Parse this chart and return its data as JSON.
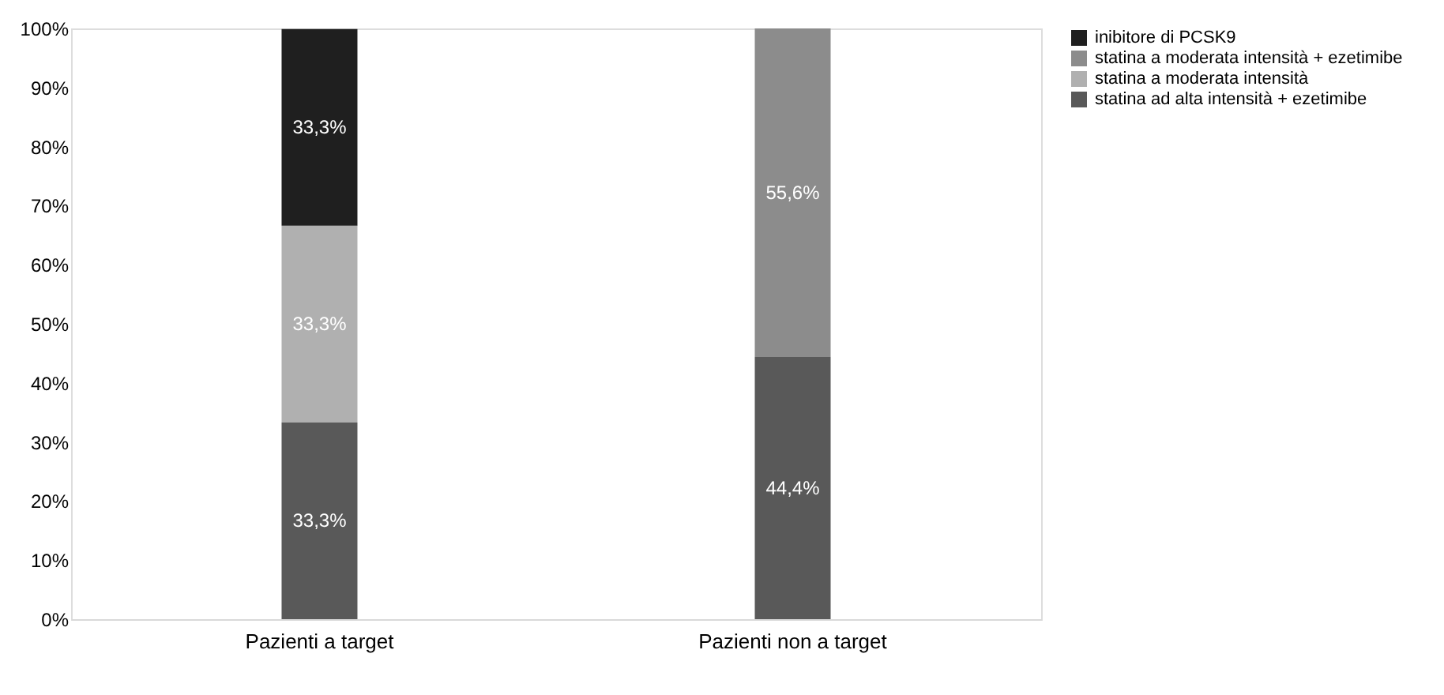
{
  "chart_data": {
    "type": "bar",
    "stacked": true,
    "categories": [
      "Pazienti a target",
      "Pazienti non a target"
    ],
    "series": [
      {
        "name": "statina ad alta intensità + ezetimibe",
        "color": "#595959",
        "values": [
          33.3,
          44.4
        ],
        "value_labels": [
          "33,3%",
          "44,4%"
        ]
      },
      {
        "name": "statina a moderata intensità",
        "color": "#b0b0b0",
        "values": [
          33.3,
          null
        ],
        "value_labels": [
          "33,3%",
          null
        ]
      },
      {
        "name": "statina a moderata intensità + ezetimibe",
        "color": "#8c8c8c",
        "values": [
          null,
          55.6
        ],
        "value_labels": [
          null,
          "55,6%"
        ]
      },
      {
        "name": "inibitore di PCSK9",
        "color": "#1f1f1f",
        "values": [
          33.3,
          null
        ],
        "value_labels": [
          "33,3%",
          null
        ]
      }
    ],
    "ylim": [
      0,
      100
    ],
    "yticks": [
      {
        "value": 0,
        "label": "0%"
      },
      {
        "value": 10,
        "label": "10%"
      },
      {
        "value": 20,
        "label": "20%"
      },
      {
        "value": 30,
        "label": "30%"
      },
      {
        "value": 40,
        "label": "40%"
      },
      {
        "value": 50,
        "label": "50%"
      },
      {
        "value": 60,
        "label": "60%"
      },
      {
        "value": 70,
        "label": "70%"
      },
      {
        "value": 80,
        "label": "80%"
      },
      {
        "value": 90,
        "label": "90%"
      },
      {
        "value": 100,
        "label": "100%"
      }
    ],
    "grid": false,
    "legend": "right"
  }
}
